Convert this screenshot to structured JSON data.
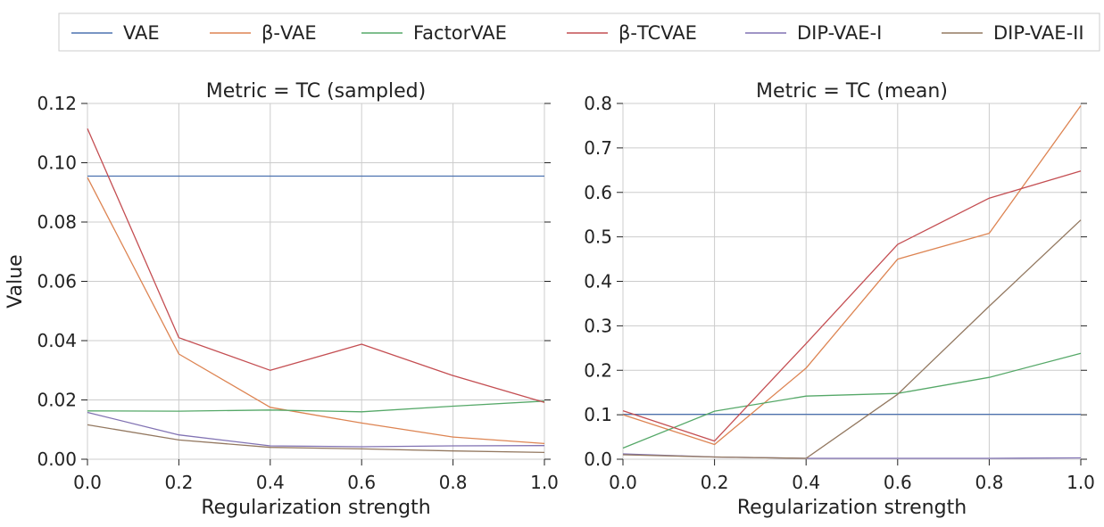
{
  "legend": [
    {
      "name": "VAE",
      "color": "#4c72b0"
    },
    {
      "name": "β-VAE",
      "color": "#dd8452"
    },
    {
      "name": "FactorVAE",
      "color": "#55a868"
    },
    {
      "name": "β-TCVAE",
      "color": "#c44e52"
    },
    {
      "name": "DIP-VAE-I",
      "color": "#8172b3"
    },
    {
      "name": "DIP-VAE-II",
      "color": "#937860"
    }
  ],
  "chart_data": [
    {
      "type": "line",
      "title": "Metric = TC (sampled)",
      "xlabel": "Regularization strength",
      "ylabel": "Value",
      "x": [
        0.0,
        0.2,
        0.4,
        0.6,
        0.8,
        1.0
      ],
      "xticks": [
        "0.0",
        "0.2",
        "0.4",
        "0.6",
        "0.8",
        "1.0"
      ],
      "xlim": [
        0,
        1
      ],
      "ylim": [
        0,
        0.12
      ],
      "yticks": [
        "0.00",
        "0.02",
        "0.04",
        "0.06",
        "0.08",
        "0.10",
        "0.12"
      ],
      "yticks_values": [
        0,
        0.02,
        0.04,
        0.06,
        0.08,
        0.1,
        0.12
      ],
      "grid": true,
      "series": [
        {
          "name": "VAE",
          "values": [
            0.0955,
            0.0955,
            0.0955,
            0.0955,
            0.0955,
            0.0955
          ]
        },
        {
          "name": "β-VAE",
          "values": [
            0.095,
            0.0355,
            0.0175,
            0.0122,
            0.0075,
            0.0053
          ]
        },
        {
          "name": "FactorVAE",
          "values": [
            0.0163,
            0.0162,
            0.0166,
            0.016,
            0.0179,
            0.0196
          ]
        },
        {
          "name": "β-TCVAE",
          "values": [
            0.1115,
            0.041,
            0.03,
            0.0388,
            0.0282,
            0.0192
          ]
        },
        {
          "name": "DIP-VAE-I",
          "values": [
            0.0158,
            0.0082,
            0.0045,
            0.0042,
            0.0045,
            0.0046
          ]
        },
        {
          "name": "DIP-VAE-II",
          "values": [
            0.0116,
            0.0065,
            0.004,
            0.0035,
            0.0028,
            0.0023
          ]
        }
      ]
    },
    {
      "type": "line",
      "title": "Metric = TC (mean)",
      "xlabel": "Regularization strength",
      "ylabel": "",
      "x": [
        0.0,
        0.2,
        0.4,
        0.6,
        0.8,
        1.0
      ],
      "xticks": [
        "0.0",
        "0.2",
        "0.4",
        "0.6",
        "0.8",
        "1.0"
      ],
      "xlim": [
        0,
        1
      ],
      "ylim": [
        0,
        0.8
      ],
      "yticks": [
        "0.0",
        "0.1",
        "0.2",
        "0.3",
        "0.4",
        "0.5",
        "0.6",
        "0.7",
        "0.8"
      ],
      "yticks_values": [
        0,
        0.1,
        0.2,
        0.3,
        0.4,
        0.5,
        0.6,
        0.7,
        0.8
      ],
      "grid": true,
      "series": [
        {
          "name": "VAE",
          "values": [
            0.101,
            0.101,
            0.101,
            0.101,
            0.101,
            0.101
          ]
        },
        {
          "name": "β-VAE",
          "values": [
            0.1,
            0.033,
            0.205,
            0.45,
            0.508,
            0.795
          ]
        },
        {
          "name": "FactorVAE",
          "values": [
            0.025,
            0.108,
            0.142,
            0.148,
            0.184,
            0.238
          ]
        },
        {
          "name": "β-TCVAE",
          "values": [
            0.109,
            0.041,
            0.26,
            0.483,
            0.587,
            0.648
          ]
        },
        {
          "name": "DIP-VAE-I",
          "values": [
            0.012,
            0.005,
            0.002,
            0.002,
            0.002,
            0.003
          ]
        },
        {
          "name": "DIP-VAE-II",
          "values": [
            0.01,
            0.005,
            0.002,
            0.146,
            0.344,
            0.538
          ]
        }
      ]
    }
  ]
}
